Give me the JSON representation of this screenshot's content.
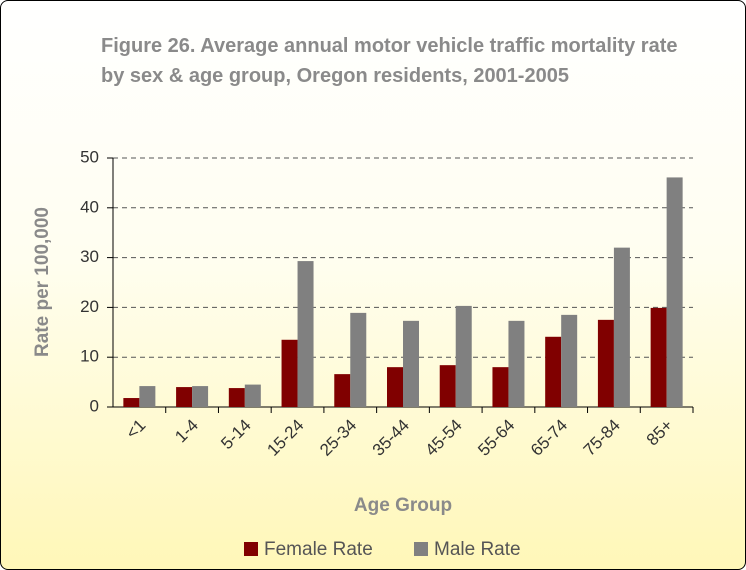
{
  "chart_data": {
    "type": "bar",
    "title": "Figure 26. Average annual motor vehicle traffic mortality rate by sex & age group, Oregon residents, 2001-2005",
    "x_label": "Age Group",
    "y_label": "Rate per 100,000",
    "categories": [
      "<1",
      "1-4",
      "5-14",
      "15-24",
      "25-34",
      "35-44",
      "45-54",
      "55-64",
      "65-74",
      "75-84",
      "85+"
    ],
    "series": [
      {
        "name": "Female Rate",
        "color": "#800000",
        "values": [
          1.8,
          4.0,
          3.8,
          13.5,
          6.6,
          8.0,
          8.4,
          8.0,
          14.1,
          17.5,
          19.9
        ]
      },
      {
        "name": "Male Rate",
        "color": "#808080",
        "values": [
          4.2,
          4.2,
          4.5,
          29.3,
          18.9,
          17.3,
          20.3,
          17.3,
          18.5,
          32.0,
          46.1
        ]
      }
    ],
    "ylim": [
      0,
      50
    ],
    "yticks": [
      0,
      10,
      20,
      30,
      40,
      50
    ],
    "grid": true,
    "legend": "bottom"
  }
}
